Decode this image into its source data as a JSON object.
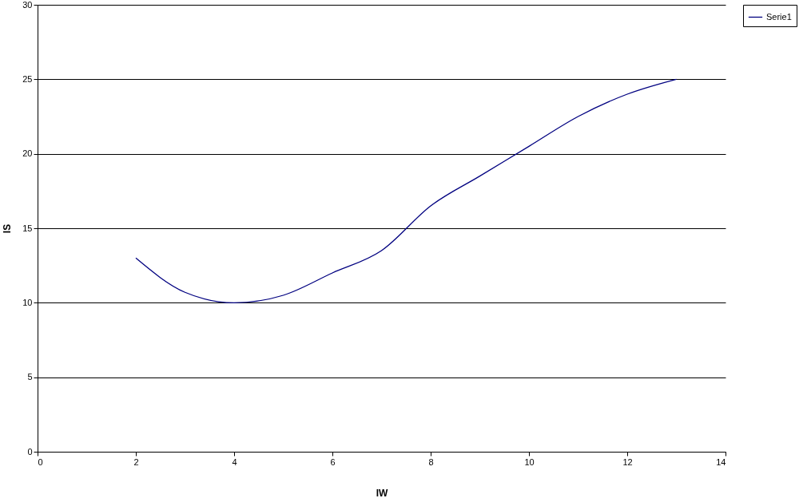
{
  "chart_data": {
    "type": "line",
    "xlabel": "IW",
    "ylabel": "IS",
    "x": [
      2,
      3,
      4,
      5,
      6,
      7,
      8,
      9,
      10,
      11,
      12,
      13
    ],
    "series": [
      {
        "name": "Serie1",
        "color": "#000080",
        "values": [
          13,
          10.7,
          10,
          10.5,
          12,
          13.5,
          16.5,
          18.5,
          20.5,
          22.5,
          24,
          25
        ]
      }
    ],
    "xlim": [
      0,
      14
    ],
    "xticks": [
      0,
      2,
      4,
      6,
      8,
      10,
      12,
      14
    ],
    "ylim": [
      0,
      30
    ],
    "yticks": [
      0,
      5,
      10,
      15,
      20,
      25,
      30
    ],
    "grid": "y",
    "legend": "right",
    "marker": "none",
    "line_style": "solid"
  }
}
